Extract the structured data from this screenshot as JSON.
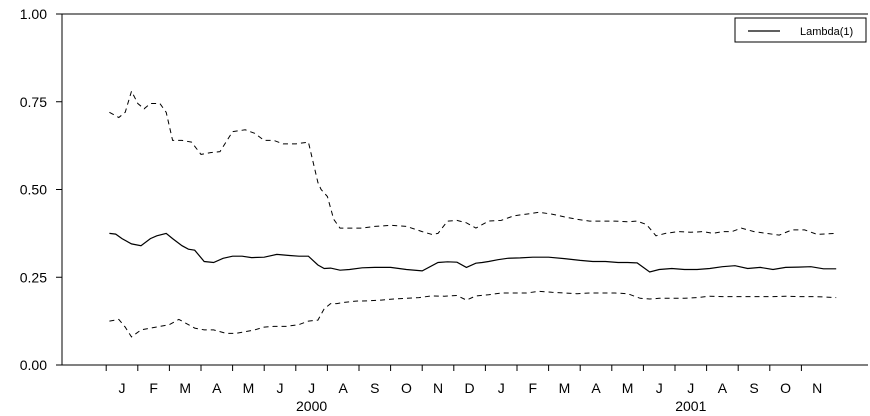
{
  "chart_data": {
    "type": "line",
    "title": "",
    "xlabel": "",
    "ylabel": "",
    "ylim": [
      0,
      1
    ],
    "yticks": [
      "0.00",
      "0.25",
      "0.50",
      "0.75",
      "1.00"
    ],
    "grid": false,
    "legend": {
      "position": "top-right",
      "entries": [
        "Lambda(1)"
      ]
    },
    "x_month_labels": [
      "J",
      "F",
      "M",
      "A",
      "M",
      "J",
      "J",
      "A",
      "S",
      "O",
      "N",
      "D",
      "J",
      "F",
      "M",
      "A",
      "M",
      "J",
      "J",
      "A",
      "S",
      "O",
      "N"
    ],
    "x_year_labels": [
      {
        "label": "2000",
        "month_index": 6
      },
      {
        "label": "2001",
        "month_index": 18
      }
    ],
    "x_unit": "month index (0 = first J label)",
    "series": [
      {
        "name": "Lambda(1)",
        "style": "solid",
        "x": [
          -0.4,
          -0.2,
          0.0,
          0.3,
          0.6,
          0.9,
          1.1,
          1.4,
          1.6,
          1.9,
          2.1,
          2.3,
          2.6,
          2.9,
          3.2,
          3.5,
          3.8,
          4.1,
          4.5,
          4.9,
          5.3,
          5.6,
          5.9,
          6.2,
          6.4,
          6.6,
          6.9,
          7.2,
          7.6,
          8.0,
          8.5,
          9.0,
          9.5,
          10.0,
          10.3,
          10.6,
          10.9,
          11.2,
          11.4,
          11.6,
          11.9,
          12.2,
          12.6,
          13.0,
          13.5,
          14.0,
          14.5,
          14.9,
          15.3,
          15.7,
          16.0,
          16.3,
          16.7,
          17.0,
          17.4,
          17.8,
          18.2,
          18.6,
          19.0,
          19.4,
          19.8,
          20.2,
          20.6,
          21.0,
          21.4,
          21.8,
          22.2,
          22.6
        ],
        "values": [
          0.375,
          0.373,
          0.36,
          0.345,
          0.34,
          0.36,
          0.368,
          0.375,
          0.36,
          0.34,
          0.33,
          0.327,
          0.295,
          0.292,
          0.304,
          0.31,
          0.31,
          0.306,
          0.307,
          0.315,
          0.312,
          0.31,
          0.31,
          0.285,
          0.275,
          0.276,
          0.27,
          0.272,
          0.277,
          0.278,
          0.278,
          0.272,
          0.268,
          0.292,
          0.294,
          0.293,
          0.278,
          0.29,
          0.292,
          0.295,
          0.3,
          0.304,
          0.305,
          0.307,
          0.307,
          0.303,
          0.298,
          0.295,
          0.295,
          0.292,
          0.292,
          0.291,
          0.265,
          0.272,
          0.275,
          0.272,
          0.272,
          0.275,
          0.28,
          0.283,
          0.275,
          0.278,
          0.272,
          0.278,
          0.279,
          0.28,
          0.274,
          0.274
        ]
      },
      {
        "name": "",
        "style": "dashed",
        "x": [
          -0.4,
          -0.1,
          0.1,
          0.3,
          0.5,
          0.7,
          0.9,
          1.2,
          1.4,
          1.6,
          1.9,
          2.2,
          2.5,
          2.8,
          3.1,
          3.5,
          3.9,
          4.2,
          4.5,
          4.8,
          5.1,
          5.5,
          5.9,
          6.2,
          6.3,
          6.5,
          6.7,
          6.9,
          7.2,
          7.6,
          8.0,
          8.5,
          9.0,
          9.5,
          9.8,
          10.0,
          10.3,
          10.6,
          10.9,
          11.2,
          11.6,
          12.0,
          12.4,
          12.8,
          13.2,
          13.6,
          14.0,
          14.4,
          14.8,
          15.2,
          15.6,
          16.0,
          16.3,
          16.6,
          16.9,
          17.2,
          17.6,
          18.0,
          18.4,
          18.7,
          19.0,
          19.3,
          19.6,
          20.0,
          20.4,
          20.8,
          21.2,
          21.6,
          22.0,
          22.6
        ],
        "values": [
          0.72,
          0.705,
          0.72,
          0.78,
          0.745,
          0.73,
          0.745,
          0.745,
          0.72,
          0.64,
          0.64,
          0.635,
          0.6,
          0.605,
          0.608,
          0.665,
          0.67,
          0.66,
          0.64,
          0.64,
          0.63,
          0.63,
          0.635,
          0.52,
          0.5,
          0.48,
          0.415,
          0.39,
          0.39,
          0.39,
          0.395,
          0.398,
          0.395,
          0.38,
          0.372,
          0.375,
          0.41,
          0.412,
          0.405,
          0.39,
          0.41,
          0.412,
          0.425,
          0.43,
          0.435,
          0.43,
          0.422,
          0.415,
          0.41,
          0.41,
          0.41,
          0.408,
          0.41,
          0.4,
          0.368,
          0.375,
          0.38,
          0.378,
          0.38,
          0.375,
          0.38,
          0.38,
          0.39,
          0.38,
          0.375,
          0.37,
          0.385,
          0.385,
          0.372,
          0.375
        ]
      },
      {
        "name": "",
        "style": "dashed",
        "x": [
          -0.4,
          -0.1,
          0.1,
          0.3,
          0.6,
          0.9,
          1.2,
          1.5,
          1.8,
          2.0,
          2.3,
          2.6,
          2.9,
          3.3,
          3.6,
          3.9,
          4.2,
          4.5,
          4.8,
          5.2,
          5.6,
          5.9,
          6.2,
          6.4,
          6.6,
          6.8,
          7.0,
          7.4,
          7.8,
          8.2,
          8.6,
          9.0,
          9.4,
          9.8,
          10.2,
          10.6,
          10.9,
          11.2,
          11.6,
          12.0,
          12.4,
          12.8,
          13.2,
          13.6,
          14.0,
          14.4,
          14.8,
          15.2,
          15.6,
          16.0,
          16.4,
          16.7,
          17.0,
          17.4,
          17.8,
          18.2,
          18.6,
          19.0,
          19.4,
          19.8,
          20.2,
          20.6,
          21.0,
          21.4,
          21.8,
          22.2,
          22.6
        ],
        "values": [
          0.125,
          0.13,
          0.108,
          0.08,
          0.1,
          0.105,
          0.11,
          0.115,
          0.13,
          0.12,
          0.105,
          0.1,
          0.1,
          0.09,
          0.09,
          0.095,
          0.1,
          0.108,
          0.11,
          0.11,
          0.115,
          0.125,
          0.128,
          0.16,
          0.175,
          0.175,
          0.178,
          0.182,
          0.183,
          0.185,
          0.188,
          0.19,
          0.192,
          0.197,
          0.196,
          0.198,
          0.185,
          0.197,
          0.2,
          0.205,
          0.205,
          0.205,
          0.21,
          0.207,
          0.205,
          0.203,
          0.205,
          0.205,
          0.205,
          0.203,
          0.19,
          0.188,
          0.19,
          0.19,
          0.19,
          0.192,
          0.196,
          0.195,
          0.195,
          0.195,
          0.195,
          0.195,
          0.196,
          0.195,
          0.195,
          0.194,
          0.192
        ]
      }
    ]
  }
}
